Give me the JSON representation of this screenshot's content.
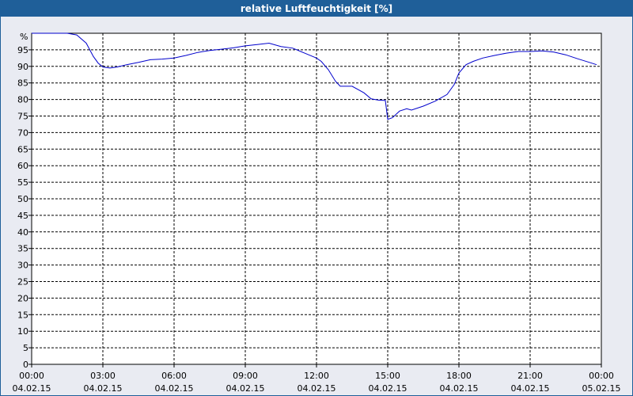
{
  "window": {
    "title": "relative Luftfeuchtigkeit [%]"
  },
  "chart_data": {
    "type": "line",
    "title": "relative Luftfeuchtigkeit [%]",
    "ylabel": "%",
    "xlabel": "",
    "ylim": [
      0,
      100
    ],
    "xlim": [
      0,
      24
    ],
    "grid": true,
    "y_ticks": [
      0,
      5,
      10,
      15,
      20,
      25,
      30,
      35,
      40,
      45,
      50,
      55,
      60,
      65,
      70,
      75,
      80,
      85,
      90,
      95
    ],
    "x_ticks": [
      {
        "time": "00:00",
        "date": "04.02.15",
        "h": 0
      },
      {
        "time": "03:00",
        "date": "04.02.15",
        "h": 3
      },
      {
        "time": "06:00",
        "date": "04.02.15",
        "h": 6
      },
      {
        "time": "09:00",
        "date": "04.02.15",
        "h": 9
      },
      {
        "time": "12:00",
        "date": "04.02.15",
        "h": 12
      },
      {
        "time": "15:00",
        "date": "04.02.15",
        "h": 15
      },
      {
        "time": "18:00",
        "date": "04.02.15",
        "h": 18
      },
      {
        "time": "21:00",
        "date": "04.02.15",
        "h": 21
      },
      {
        "time": "00:00",
        "date": "05.02.15",
        "h": 24
      }
    ],
    "line_color": "#0000cc",
    "series": [
      {
        "x": [
          0,
          0.5,
          1.0,
          1.5,
          1.9,
          2.3,
          2.6,
          2.8,
          3.0,
          3.3,
          3.6,
          4.0,
          4.5,
          5.0,
          5.5,
          6.0,
          6.5,
          7.0,
          7.5,
          8.0,
          8.5,
          9.0,
          9.5,
          10.0,
          10.5,
          11.0,
          11.5,
          12.0,
          12.2,
          12.5,
          12.8,
          13.0,
          13.5,
          14.0,
          14.3,
          14.6,
          14.9,
          15.0,
          15.2,
          15.5,
          15.8,
          16.0,
          16.5,
          17.0,
          17.5,
          17.8,
          18.0,
          18.3,
          18.6,
          19.0,
          19.5,
          20.0,
          20.5,
          21.0,
          21.5,
          22.0,
          22.5,
          23.0,
          23.5,
          23.8
        ],
        "y": [
          100,
          100,
          100,
          100,
          99.5,
          97,
          93,
          91,
          89.8,
          89.5,
          89.8,
          90.5,
          91.2,
          92,
          92.2,
          92.5,
          93.3,
          94.2,
          94.8,
          95.2,
          95.6,
          96.2,
          96.6,
          97,
          96,
          95.5,
          94,
          92.5,
          91.5,
          89,
          85.5,
          84,
          84,
          82,
          80.2,
          79.8,
          79.7,
          74,
          74.5,
          76.5,
          77.2,
          76.8,
          78,
          79.5,
          81.5,
          84.5,
          88,
          90.5,
          91.5,
          92.5,
          93.3,
          94,
          94.5,
          94.5,
          94.7,
          94.3,
          93.5,
          92.3,
          91.2,
          90.5
        ]
      }
    ]
  }
}
